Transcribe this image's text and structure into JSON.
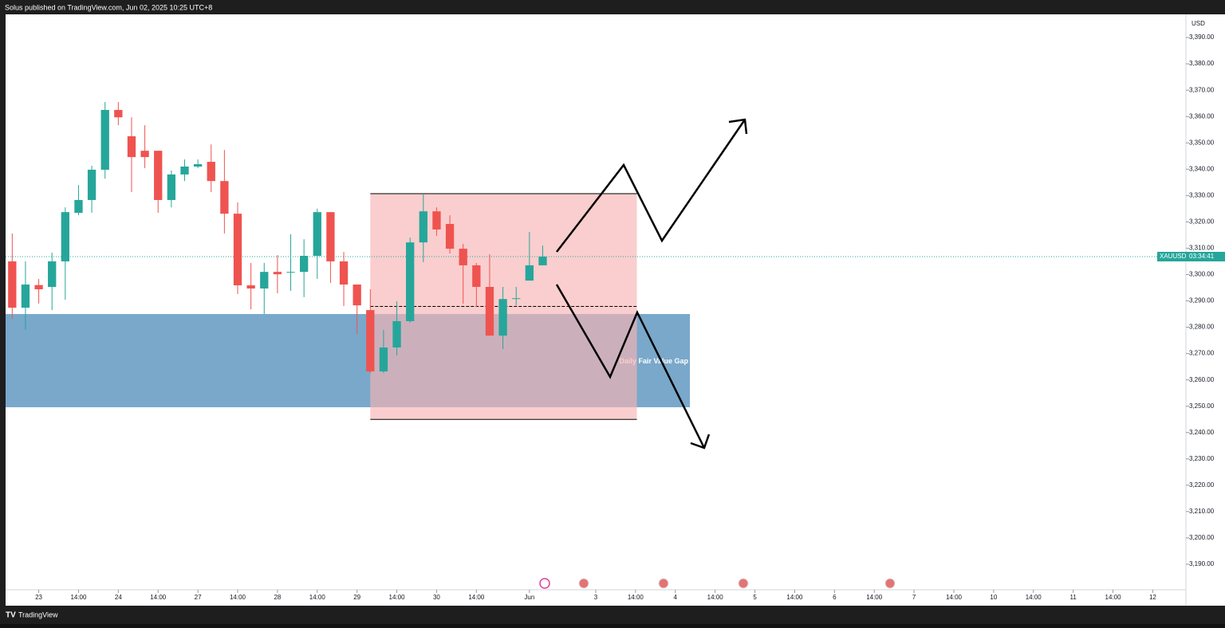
{
  "header": {
    "text": "Solus published on TradingView.com, Jun 02, 2025 10:25 UTC+8"
  },
  "footer": {
    "brand": "TradingView"
  },
  "chart_data": {
    "type": "candlestick",
    "symbol": "XAUUSD",
    "countdown": "03:34:41",
    "currency": "USD",
    "up_color": "#26a69a",
    "down_color": "#ef5350",
    "open": [
      3305,
      3287.4,
      3296,
      3295.3,
      3305,
      3323.4,
      3328.3,
      3339.8,
      3362.5,
      3352.5,
      3347,
      3347,
      3328.3,
      3338,
      3341,
      3342.8,
      3335.5,
      3323.1,
      3295.9,
      3294.7,
      3301,
      3300.7,
      3301,
      3307.1,
      3323.7,
      3305,
      3296.2,
      3286.5,
      3263.2,
      3272.3,
      3282.3,
      3312.2,
      3324,
      3319.2,
      3309.8,
      3303.5,
      3295.3,
      3276.8,
      3290.7,
      3297.7,
      3303.5
    ],
    "high": [
      3315.6,
      3305,
      3298.3,
      3308.3,
      3325.5,
      3334,
      3341.3,
      3365.5,
      3365.5,
      3359.7,
      3356.7,
      3347,
      3339.5,
      3343.7,
      3343.7,
      3349.4,
      3347.3,
      3327.4,
      3304.4,
      3304.4,
      3307.4,
      3315.3,
      3313.4,
      3325,
      3323.7,
      3308.6,
      3296.2,
      3294.4,
      3279,
      3289.8,
      3314,
      3330.4,
      3325.5,
      3322.5,
      3311.6,
      3304.4,
      3307.7,
      3295.3,
      3295.3,
      3316.2,
      3311
    ],
    "low": [
      3283.2,
      3279,
      3289,
      3286.5,
      3290.4,
      3322.5,
      3323.4,
      3336.4,
      3356.7,
      3331.3,
      3340.4,
      3323.4,
      3325.5,
      3335.5,
      3340.4,
      3331.3,
      3315.6,
      3292.6,
      3286.8,
      3285,
      3292.9,
      3293.8,
      3291.4,
      3298.3,
      3296.8,
      3288,
      3277.4,
      3262.6,
      3262.6,
      3269.3,
      3281.7,
      3304.7,
      3314.7,
      3308,
      3288.9,
      3287.7,
      3276.8,
      3271.7,
      3288.3,
      3297.7,
      3303.5
    ],
    "close": [
      3287.4,
      3296.2,
      3294.4,
      3305,
      3323.7,
      3328.3,
      3339.8,
      3362.5,
      3359.7,
      3344.6,
      3344.6,
      3328.3,
      3338,
      3341,
      3341.9,
      3335.5,
      3323.1,
      3295.9,
      3294.7,
      3301,
      3300.1,
      3301,
      3307.1,
      3323.7,
      3305,
      3296.2,
      3288.3,
      3263.2,
      3272.3,
      3282.3,
      3312.2,
      3324,
      3317.1,
      3309.8,
      3303.5,
      3295.3,
      3276.8,
      3290.7,
      3291,
      3303.5,
      3306.8
    ],
    "xlim": [
      -0.5,
      88.5
    ],
    "xticks": [
      {
        "value": 2,
        "label": "23"
      },
      {
        "value": 5,
        "label": "14:00"
      },
      {
        "value": 8,
        "label": "24"
      },
      {
        "value": 11,
        "label": "14:00"
      },
      {
        "value": 14,
        "label": "27"
      },
      {
        "value": 17,
        "label": "14:00"
      },
      {
        "value": 20,
        "label": "28"
      },
      {
        "value": 23,
        "label": "14:00"
      },
      {
        "value": 26,
        "label": "29"
      },
      {
        "value": 29,
        "label": "14:00"
      },
      {
        "value": 32,
        "label": "30"
      },
      {
        "value": 35,
        "label": "14:00"
      },
      {
        "value": 39,
        "label": "Jun"
      },
      {
        "value": 44,
        "label": "3"
      },
      {
        "value": 47,
        "label": "14:00"
      },
      {
        "value": 50,
        "label": "4"
      },
      {
        "value": 53,
        "label": "14:00"
      },
      {
        "value": 56,
        "label": "5"
      },
      {
        "value": 59,
        "label": "14:00"
      },
      {
        "value": 62,
        "label": "6"
      },
      {
        "value": 65,
        "label": "14:00"
      },
      {
        "value": 68,
        "label": "7"
      },
      {
        "value": 71,
        "label": "14:00"
      },
      {
        "value": 74,
        "label": "10"
      },
      {
        "value": 77,
        "label": "14:00"
      },
      {
        "value": 80,
        "label": "11"
      },
      {
        "value": 83,
        "label": "14:00"
      },
      {
        "value": 86,
        "label": "12"
      }
    ],
    "ylim": [
      3180.3,
      3398.8
    ],
    "yticks": [
      {
        "value": 3190,
        "label": "3,190.00"
      },
      {
        "value": 3200,
        "label": "3,200.00"
      },
      {
        "value": 3210,
        "label": "3,210.00"
      },
      {
        "value": 3220,
        "label": "3,220.00"
      },
      {
        "value": 3230,
        "label": "3,230.00"
      },
      {
        "value": 3240,
        "label": "3,240.00"
      },
      {
        "value": 3250,
        "label": "3,250.00"
      },
      {
        "value": 3260,
        "label": "3,260.00"
      },
      {
        "value": 3270,
        "label": "3,270.00"
      },
      {
        "value": 3280,
        "label": "3,280.00"
      },
      {
        "value": 3290,
        "label": "3,290.00"
      },
      {
        "value": 3300,
        "label": "3,300.00"
      },
      {
        "value": 3310,
        "label": "3,310.00"
      },
      {
        "value": 3320,
        "label": "3,320.00"
      },
      {
        "value": 3330,
        "label": "3,330.00"
      },
      {
        "value": 3340,
        "label": "3,340.00"
      },
      {
        "value": 3350,
        "label": "3,350.00"
      },
      {
        "value": 3360,
        "label": "3,360.00"
      },
      {
        "value": 3370,
        "label": "3,370.00"
      },
      {
        "value": 3380,
        "label": "3,380.00"
      },
      {
        "value": 3390,
        "label": "3,390.00"
      }
    ],
    "zones": [
      {
        "label": "Daily Fair Value Gap",
        "color": "#6a9fc4",
        "xlim": [
          -0.5,
          51.1
        ],
        "ylim": [
          3249.6,
          3285
        ]
      },
      {
        "color": "#f8b4b4",
        "xlim": [
          27,
          47.1
        ],
        "ylim": [
          3245,
          3330.7
        ],
        "midline": 3287.9
      }
    ]
  }
}
